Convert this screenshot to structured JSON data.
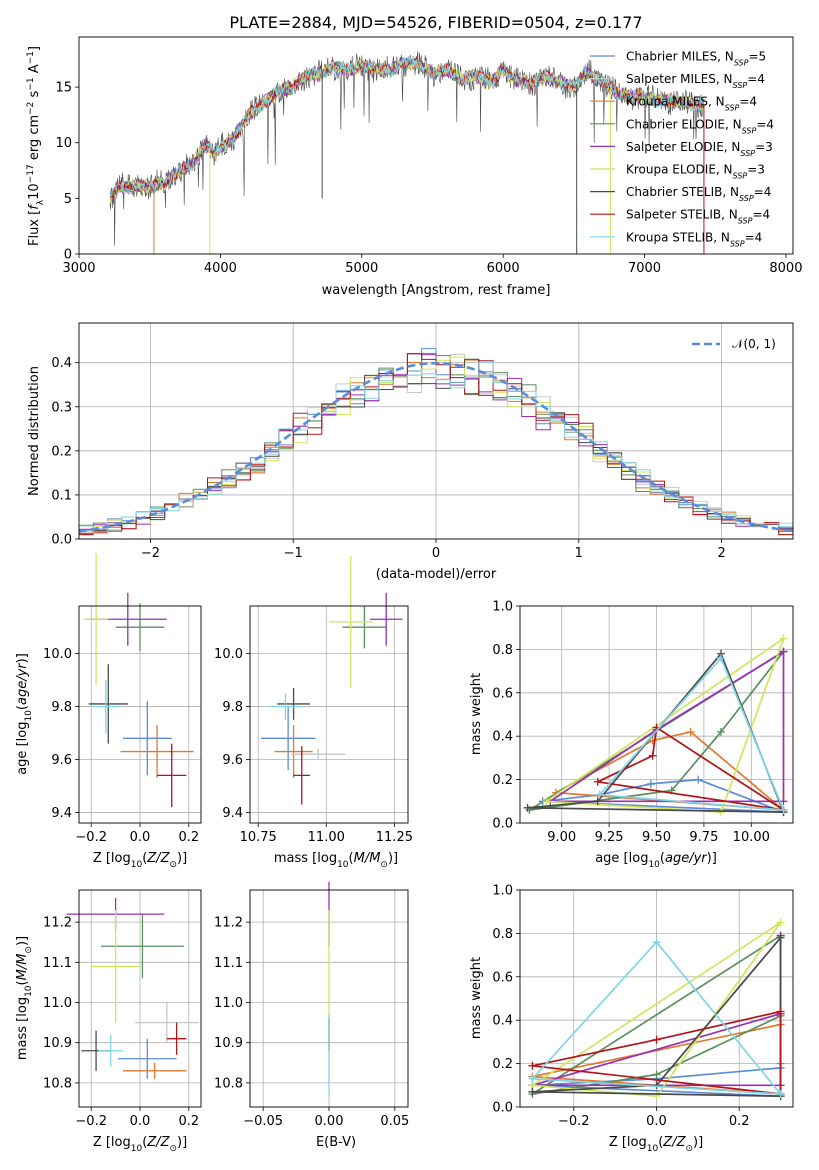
{
  "figure": {
    "title": "PLATE=2884, MJD=54526, FIBERID=0504, z=0.177"
  },
  "legend_mathnormal": "𝒩(0, 1)",
  "models": [
    {
      "name": "Chabrier MILES",
      "nssp": "5",
      "color": "#5b8bd9"
    },
    {
      "name": "Salpeter MILES",
      "nssp": "4",
      "color": "#c5c7c9"
    },
    {
      "name": "Kroupa MILES",
      "nssp": "4",
      "color": "#e07a2f"
    },
    {
      "name": "Chabrier ELODIE",
      "nssp": "4",
      "color": "#5a8f5e"
    },
    {
      "name": "Salpeter ELODIE",
      "nssp": "3",
      "color": "#9a2fb3"
    },
    {
      "name": "Kroupa ELODIE",
      "nssp": "3",
      "color": "#cfe65a"
    },
    {
      "name": "Chabrier STELIB",
      "nssp": "4",
      "color": "#4a4a4a"
    },
    {
      "name": "Salpeter STELIB",
      "nssp": "4",
      "color": "#b3141a"
    },
    {
      "name": "Kroupa STELIB",
      "nssp": "4",
      "color": "#7fd4e8"
    }
  ],
  "chart_data": [
    {
      "type": "line",
      "panel": "spectrum",
      "xlabel": "wavelength [Angstrom, rest frame]",
      "ylabel": "Flux [fλ10⁻¹⁷ erg cm⁻² s⁻¹ A⁻¹]",
      "xlim": [
        3000,
        8050
      ],
      "ylim": [
        0,
        19.5
      ],
      "xticks": [
        "3000",
        "4000",
        "5000",
        "6000",
        "7000",
        "8000"
      ],
      "yticks": [
        "0",
        "5",
        "10",
        "15"
      ],
      "legend": "top-right",
      "x": [
        3220,
        3300,
        3400,
        3500,
        3600,
        3700,
        3800,
        3900,
        3950,
        4000,
        4100,
        4200,
        4300,
        4400,
        4500,
        4600,
        4700,
        4800,
        4900,
        5000,
        5100,
        5200,
        5300,
        5400,
        5500,
        5600,
        5700,
        5800,
        5900,
        6000,
        6100,
        6200,
        6300,
        6400,
        6500,
        6600,
        6700,
        6800,
        6900,
        7000,
        7100,
        7200,
        7300,
        7400
      ],
      "y": [
        5.2,
        6.0,
        6.3,
        6.0,
        6.5,
        7.3,
        8.0,
        10.0,
        9.0,
        9.5,
        10.5,
        12.5,
        13.5,
        14.5,
        15.0,
        16.0,
        16.2,
        16.8,
        16.5,
        17.0,
        16.6,
        16.5,
        17.2,
        17.0,
        16.2,
        16.6,
        15.8,
        16.0,
        15.5,
        16.6,
        15.5,
        15.4,
        16.0,
        15.5,
        15.0,
        16.4,
        15.5,
        14.5,
        14.2,
        14.0,
        13.8,
        13.7,
        13.5,
        13.5
      ],
      "series": [
        {
          "name": "Chabrier MILES, N_SSP=5"
        },
        {
          "name": "Salpeter MILES, N_SSP=4"
        },
        {
          "name": "Kroupa MILES, N_SSP=4"
        },
        {
          "name": "Chabrier ELODIE, N_SSP=4"
        },
        {
          "name": "Salpeter ELODIE, N_SSP=3"
        },
        {
          "name": "Kroupa ELODIE, N_SSP=3"
        },
        {
          "name": "Chabrier STELIB, N_SSP=4"
        },
        {
          "name": "Salpeter STELIB, N_SSP=4"
        },
        {
          "name": "Kroupa STELIB, N_SSP=4"
        }
      ]
    },
    {
      "type": "line",
      "panel": "residuals",
      "xlabel": "(data-model)/error",
      "ylabel": "Normed distribution",
      "xlim": [
        -2.5,
        2.5
      ],
      "ylim": [
        0,
        0.49
      ],
      "xticks": [
        "−2",
        "−1",
        "0",
        "1",
        "2"
      ],
      "yticks": [
        "0.0",
        "0.1",
        "0.2",
        "0.3",
        "0.4"
      ],
      "legend": "top-right",
      "bin_width": 0.1,
      "gaussian": {
        "name": "N(0,1)",
        "mu": 0,
        "sigma": 1
      }
    },
    {
      "type": "scatter",
      "panel": "age-vs-Z",
      "xlabel": "Z [log10(Z/Z⊙)]",
      "ylabel": "age  [log10(age/yr)]",
      "xlim": [
        -0.25,
        0.25
      ],
      "ylim": [
        9.36,
        10.18
      ],
      "xticks": [
        "−0.2",
        "0.0",
        "0.2"
      ],
      "yticks": [
        "9.4",
        "9.6",
        "9.8",
        "10.0"
      ],
      "points": [
        {
          "model": 0,
          "x": 0.03,
          "y": 9.68,
          "xerr": 0.1,
          "yerr": 0.14
        },
        {
          "model": 2,
          "x": 0.07,
          "y": 9.63,
          "xerr": 0.15,
          "yerr": 0.1
        },
        {
          "model": 3,
          "x": 0.0,
          "y": 10.1,
          "xerr": 0.1,
          "yerr": 0.09
        },
        {
          "model": 4,
          "x": -0.05,
          "y": 10.13,
          "xerr": 0.16,
          "yerr": 0.1
        },
        {
          "model": 5,
          "x": -0.18,
          "y": 10.13,
          "xerr": 0.05,
          "yerr": 0.25
        },
        {
          "model": 6,
          "x": -0.13,
          "y": 9.81,
          "xerr": 0.08,
          "yerr": 0.15
        },
        {
          "model": 7,
          "x": 0.13,
          "y": 9.54,
          "xerr": 0.06,
          "yerr": 0.12
        },
        {
          "model": 8,
          "x": -0.14,
          "y": 9.8,
          "xerr": 0.06,
          "yerr": 0.1
        }
      ]
    },
    {
      "type": "scatter",
      "panel": "age-vs-mass",
      "xlabel": "mass [log10(M/M⊙)]",
      "xlim": [
        10.72,
        11.3
      ],
      "ylim": [
        9.36,
        10.18
      ],
      "xticks": [
        "10.75",
        "11.00",
        "11.25"
      ],
      "yticks": [
        "9.4",
        "9.6",
        "9.8",
        "10.0"
      ],
      "points": [
        {
          "model": 0,
          "x": 10.86,
          "y": 9.68,
          "xerr": 0.1,
          "yerr": 0.12
        },
        {
          "model": 2,
          "x": 10.88,
          "y": 9.63,
          "xerr": 0.07,
          "yerr": 0.1
        },
        {
          "model": 1,
          "x": 10.97,
          "y": 9.62,
          "xerr": 0.1,
          "yerr": 0.02
        },
        {
          "model": 3,
          "x": 11.14,
          "y": 10.1,
          "xerr": 0.08,
          "yerr": 0.08
        },
        {
          "model": 4,
          "x": 11.22,
          "y": 10.13,
          "xerr": 0.06,
          "yerr": 0.1
        },
        {
          "model": 5,
          "x": 11.09,
          "y": 10.12,
          "xerr": 0.08,
          "yerr": 0.25
        },
        {
          "model": 6,
          "x": 10.88,
          "y": 9.81,
          "xerr": 0.06,
          "yerr": 0.06
        },
        {
          "model": 7,
          "x": 10.91,
          "y": 9.54,
          "xerr": 0.03,
          "yerr": 0.11
        },
        {
          "model": 8,
          "x": 10.85,
          "y": 9.8,
          "xerr": 0.06,
          "yerr": 0.05
        }
      ]
    },
    {
      "type": "line",
      "panel": "weight-vs-age",
      "xlabel": "age  [log10(age/yr)]",
      "ylabel": "mass weight",
      "xlim": [
        8.78,
        10.22
      ],
      "ylim": [
        0,
        1
      ],
      "xticks": [
        "9.00",
        "9.25",
        "9.50",
        "9.75",
        "10.00"
      ],
      "yticks": [
        "0.0",
        "0.2",
        "0.4",
        "0.6",
        "0.8",
        "1.0"
      ]
    },
    {
      "type": "scatter",
      "panel": "mass-vs-Z",
      "xlabel": "Z [log10(Z/Z⊙)]",
      "ylabel": "mass [log10(M/M⊙)]",
      "xlim": [
        -0.25,
        0.25
      ],
      "ylim": [
        10.74,
        11.28
      ],
      "xticks": [
        "−0.2",
        "0.0",
        "0.2"
      ],
      "yticks": [
        "10.8",
        "10.9",
        "11.0",
        "11.1",
        "11.2"
      ],
      "points": [
        {
          "model": 0,
          "x": 0.03,
          "y": 10.86,
          "xerr": 0.12,
          "yerr": 0.05
        },
        {
          "model": 2,
          "x": 0.06,
          "y": 10.83,
          "xerr": 0.13,
          "yerr": 0.02
        },
        {
          "model": 1,
          "x": 0.11,
          "y": 10.95,
          "xerr": 0.13,
          "yerr": 0.05
        },
        {
          "model": 3,
          "x": 0.01,
          "y": 11.14,
          "xerr": 0.17,
          "yerr": 0.08
        },
        {
          "model": 4,
          "x": -0.1,
          "y": 11.22,
          "xerr": 0.2,
          "yerr": 0.04
        },
        {
          "model": 5,
          "x": -0.1,
          "y": 11.09,
          "xerr": 0.1,
          "yerr": 0.14
        },
        {
          "model": 6,
          "x": -0.18,
          "y": 10.88,
          "xerr": 0.06,
          "yerr": 0.05
        },
        {
          "model": 7,
          "x": 0.15,
          "y": 10.91,
          "xerr": 0.04,
          "yerr": 0.04
        },
        {
          "model": 8,
          "x": -0.12,
          "y": 10.88,
          "xerr": 0.05,
          "yerr": 0.04
        }
      ]
    },
    {
      "type": "scatter",
      "panel": "mass-vs-EBV",
      "xlabel": "E(B-V)",
      "xlim": [
        -0.06,
        0.06
      ],
      "ylim": [
        10.74,
        11.28
      ],
      "xticks": [
        "−0.05",
        "0.00",
        "0.05"
      ],
      "yticks": [
        "10.8",
        "10.9",
        "11.0",
        "11.1",
        "11.2"
      ],
      "points": [
        {
          "model": 4,
          "x": 0.0,
          "y": 11.22,
          "xerr": 0,
          "yerr": 0.08
        },
        {
          "model": 5,
          "x": 0.0,
          "y": 11.09,
          "xerr": 0,
          "yerr": 0.14
        },
        {
          "model": 7,
          "x": 0.0,
          "y": 10.92,
          "xerr": 0,
          "yerr": 0.04
        },
        {
          "model": 8,
          "x": 0.0,
          "y": 10.87,
          "xerr": 0,
          "yerr": 0.1
        }
      ]
    },
    {
      "type": "line",
      "panel": "weight-vs-Z",
      "xlabel": "Z [log10(Z/Z⊙)]",
      "ylabel": "mass weight",
      "xlim": [
        -0.33,
        0.33
      ],
      "ylim": [
        0,
        1
      ],
      "xticks": [
        "−0.2",
        "0.0",
        "0.2"
      ],
      "yticks": [
        "0.0",
        "0.2",
        "0.4",
        "0.6",
        "0.8",
        "1.0"
      ]
    }
  ],
  "ssp_weights": [
    {
      "model": 0,
      "age": [
        8.9,
        9.2,
        9.47,
        9.72,
        10.17
      ],
      "Z": [
        -0.3,
        0.0,
        0.3,
        0.3,
        0.3
      ],
      "w": [
        0.1,
        0.13,
        0.18,
        0.2,
        0.05
      ]
    },
    {
      "model": 2,
      "age": [
        8.97,
        9.48,
        9.68,
        10.17
      ],
      "Z": [
        -0.3,
        0.3,
        0.3,
        0.3
      ],
      "w": [
        0.14,
        0.38,
        0.42,
        0.06
      ]
    },
    {
      "model": 3,
      "age": [
        8.83,
        9.58,
        9.84,
        10.17
      ],
      "Z": [
        -0.3,
        0.0,
        0.3,
        0.3
      ],
      "w": [
        0.06,
        0.15,
        0.42,
        0.79
      ]
    },
    {
      "model": 4,
      "age": [
        8.94,
        9.5,
        10.17,
        10.17
      ],
      "Z": [
        -0.3,
        0.3,
        0.3,
        0.3
      ],
      "w": [
        0.1,
        0.43,
        0.79,
        0.1
      ]
    },
    {
      "model": 5,
      "age": [
        8.92,
        9.84,
        10.17
      ],
      "Z": [
        -0.3,
        0.0,
        0.3
      ],
      "w": [
        0.1,
        0.05,
        0.85
      ]
    },
    {
      "model": 6,
      "age": [
        8.82,
        9.19,
        9.84,
        10.17
      ],
      "Z": [
        -0.3,
        0.0,
        0.3,
        0.3
      ],
      "w": [
        0.07,
        0.1,
        0.78,
        0.05
      ]
    },
    {
      "model": 7,
      "age": [
        9.19,
        9.48,
        9.5,
        10.17
      ],
      "Z": [
        -0.3,
        0.0,
        0.3,
        0.3
      ],
      "w": [
        0.19,
        0.31,
        0.44,
        0.06
      ]
    },
    {
      "model": 8,
      "age": [
        9.2,
        9.84,
        10.17
      ],
      "Z": [
        -0.3,
        0.0,
        0.3
      ],
      "w": [
        0.13,
        0.76,
        0.06
      ]
    }
  ]
}
